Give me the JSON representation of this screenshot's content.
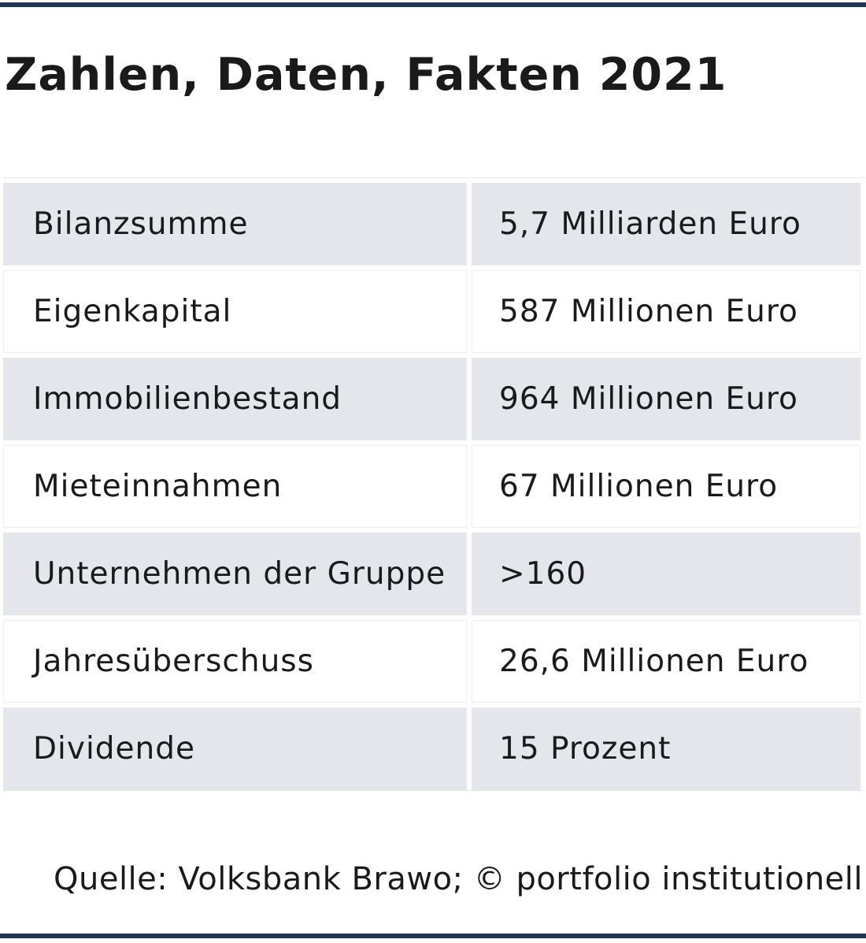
{
  "title": "Zahlen, Daten, Fakten 2021",
  "colors": {
    "rule": "#1c3557",
    "shaded_row": "#e5e6ec",
    "text": "#1a1a1a"
  },
  "rows": [
    {
      "label": "Bilanzsumme",
      "value": "5,7 Milliarden Euro"
    },
    {
      "label": "Eigenkapital",
      "value": "587 Millionen Euro"
    },
    {
      "label": "Immobilienbestand",
      "value": "964 Millionen Euro"
    },
    {
      "label": "Mieteinnahmen",
      "value": "67 Millionen Euro"
    },
    {
      "label": "Unternehmen der Gruppe",
      "value": ">160"
    },
    {
      "label": "Jahresüberschuss",
      "value": "26,6 Millionen Euro"
    },
    {
      "label": "Dividende",
      "value": "15 Prozent"
    }
  ],
  "source": "Quelle: Volksbank Brawo; © portfolio institutionell"
}
